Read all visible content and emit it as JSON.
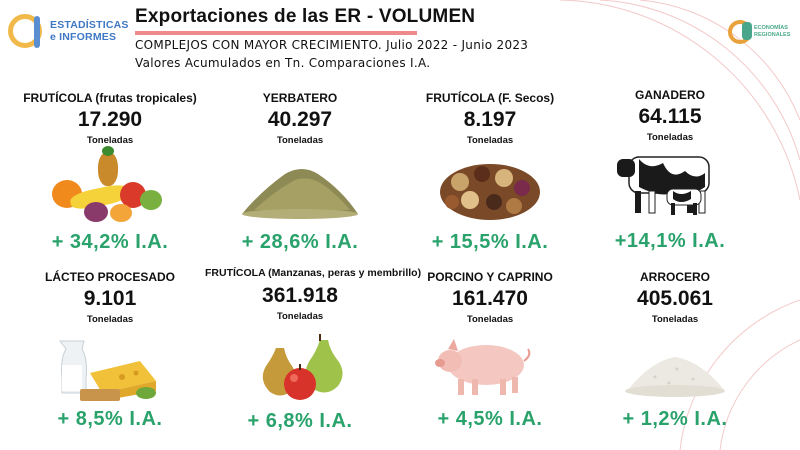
{
  "header": {
    "logo_left": [
      "ESTADÍSTICAS",
      "e INFORMES"
    ],
    "title": "Exportaciones de las ER - VOLUMEN",
    "subtitle_1": "COMPLEJOS CON MAYOR CRECIMIENTO. Julio 2022 - Junio 2023",
    "subtitle_2": "Valores Acumulados en Tn. Comparaciones I.A.",
    "logo_right": [
      "ECONOMÍAS",
      "REGIONALES"
    ]
  },
  "colors": {
    "accent_underline": "#ef8a8a",
    "growth_green": "#2aa26b"
  },
  "cards": [
    {
      "name": "FRUTÍCOLA (frutas tropicales)",
      "value": "17.290",
      "unit": "Toneladas",
      "growth": "+ 34,2% I.A.",
      "icon": "tropical-fruits-icon"
    },
    {
      "name": "YERBATERO",
      "value": "40.297",
      "unit": "Toneladas",
      "growth": "+ 28,6% I.A.",
      "icon": "yerba-mate-icon"
    },
    {
      "name": "FRUTÍCOLA (F. Secos)",
      "value": "8.197",
      "unit": "Toneladas",
      "growth": "+ 15,5% I.A.",
      "icon": "dried-fruits-icon"
    },
    {
      "name": "GANADERO",
      "value": "64.115",
      "unit": "Toneladas",
      "growth": "+14,1% I.A.",
      "icon": "cow-icon"
    },
    {
      "name": "LÁCTEO PROCESADO",
      "value": "9.101",
      "unit": "Toneladas",
      "growth": "+ 8,5% I.A.",
      "icon": "dairy-icon"
    },
    {
      "name": "FRUTÍCOLA (Manzanas, peras y membrillo)",
      "value": "361.918",
      "unit": "Toneladas",
      "growth": "+ 6,8% I.A.",
      "icon": "apple-pear-icon"
    },
    {
      "name": "PORCINO Y CAPRINO",
      "value": "161.470",
      "unit": "Toneladas",
      "growth": "+ 4,5% I.A.",
      "icon": "pig-icon"
    },
    {
      "name": "ARROCERO",
      "value": "405.061",
      "unit": "Toneladas",
      "growth": "+ 1,2% I.A.",
      "icon": "rice-icon"
    }
  ]
}
